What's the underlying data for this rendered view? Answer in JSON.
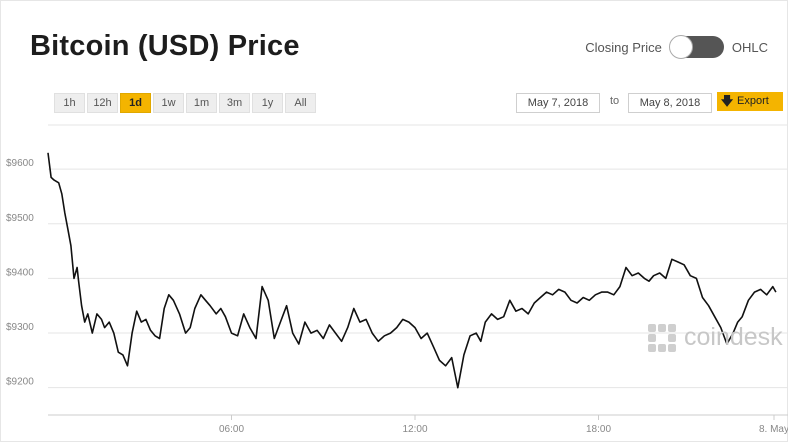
{
  "title": "Bitcoin (USD) Price",
  "toggle": {
    "left_label": "Closing Price",
    "right_label": "OHLC"
  },
  "ranges": [
    "1h",
    "12h",
    "1d",
    "1w",
    "1m",
    "3m",
    "1y",
    "All"
  ],
  "active_range": "1d",
  "date_from": "May 7, 2018",
  "date_to_label": "to",
  "date_to": "May 8, 2018",
  "export_label": "Export",
  "watermark": "coindesk",
  "colors": {
    "accent": "#f4b400",
    "line": "#111111",
    "grid": "#e5e5e5"
  },
  "chart_data": {
    "type": "line",
    "title": "Bitcoin (USD) Price",
    "xlabel": "",
    "ylabel": "",
    "x_ticks": [
      "06:00",
      "12:00",
      "18:00",
      "8. May"
    ],
    "y_ticks": [
      "$9200",
      "$9300",
      "$9400",
      "$9500",
      "$9600"
    ],
    "ylim": [
      9150,
      9690
    ],
    "xlim_hours": [
      0,
      24
    ],
    "grid": true,
    "series": [
      {
        "values_x_hours": [
          0.0,
          0.1,
          0.2,
          0.35,
          0.45,
          0.55,
          0.65,
          0.75,
          0.85,
          0.95,
          1.0,
          1.1,
          1.2,
          1.3,
          1.45,
          1.6,
          1.75,
          1.85,
          2.0,
          2.15,
          2.3,
          2.45,
          2.6,
          2.75,
          2.9,
          3.05,
          3.2,
          3.35,
          3.5,
          3.65,
          3.8,
          3.95,
          4.1,
          4.3,
          4.5,
          4.65,
          4.8,
          5.0,
          5.15,
          5.3,
          5.5,
          5.65,
          5.8,
          6.0,
          6.2,
          6.4,
          6.6,
          6.8,
          7.0,
          7.2,
          7.4,
          7.6,
          7.8,
          8.0,
          8.2,
          8.4,
          8.6,
          8.8,
          9.0,
          9.2,
          9.4,
          9.6,
          9.8,
          10.0,
          10.2,
          10.4,
          10.6,
          10.8,
          11.0,
          11.2,
          11.4,
          11.6,
          11.8,
          12.0,
          12.2,
          12.4,
          12.6,
          12.8,
          13.0,
          13.2,
          13.4,
          13.6,
          13.8,
          14.0,
          14.15,
          14.3,
          14.5,
          14.7,
          14.9,
          15.1,
          15.3,
          15.5,
          15.7,
          15.9,
          16.1,
          16.3,
          16.5,
          16.7,
          16.9,
          17.1,
          17.3,
          17.5,
          17.7,
          17.9,
          18.1,
          18.3,
          18.5,
          18.7,
          18.9,
          19.1,
          19.3,
          19.5,
          19.65,
          19.8,
          20.0,
          20.2,
          20.4,
          20.6,
          20.8,
          21.0,
          21.2,
          21.4,
          21.6,
          21.8,
          22.0,
          22.2,
          22.4,
          22.55,
          22.7,
          22.9,
          23.1,
          23.3,
          23.5,
          23.7,
          23.8
        ],
        "values_y_usd": [
          9630,
          9585,
          9580,
          9575,
          9555,
          9520,
          9490,
          9460,
          9400,
          9420,
          9395,
          9350,
          9320,
          9335,
          9300,
          9335,
          9325,
          9310,
          9320,
          9300,
          9265,
          9260,
          9240,
          9300,
          9340,
          9320,
          9325,
          9305,
          9295,
          9290,
          9345,
          9370,
          9360,
          9335,
          9300,
          9310,
          9345,
          9370,
          9360,
          9350,
          9335,
          9345,
          9330,
          9300,
          9295,
          9335,
          9310,
          9290,
          9385,
          9360,
          9290,
          9320,
          9350,
          9300,
          9280,
          9320,
          9300,
          9305,
          9290,
          9315,
          9300,
          9285,
          9310,
          9345,
          9320,
          9325,
          9300,
          9285,
          9295,
          9300,
          9310,
          9325,
          9320,
          9310,
          9290,
          9300,
          9275,
          9250,
          9240,
          9255,
          9200,
          9260,
          9295,
          9300,
          9285,
          9320,
          9335,
          9325,
          9330,
          9360,
          9340,
          9345,
          9335,
          9355,
          9365,
          9375,
          9370,
          9380,
          9375,
          9360,
          9355,
          9365,
          9360,
          9370,
          9375,
          9375,
          9370,
          9385,
          9420,
          9405,
          9410,
          9400,
          9395,
          9405,
          9410,
          9400,
          9435,
          9430,
          9425,
          9405,
          9400,
          9365,
          9350,
          9330,
          9310,
          9280,
          9300,
          9320,
          9330,
          9360,
          9375,
          9380,
          9370,
          9385,
          9375
        ]
      }
    ]
  }
}
